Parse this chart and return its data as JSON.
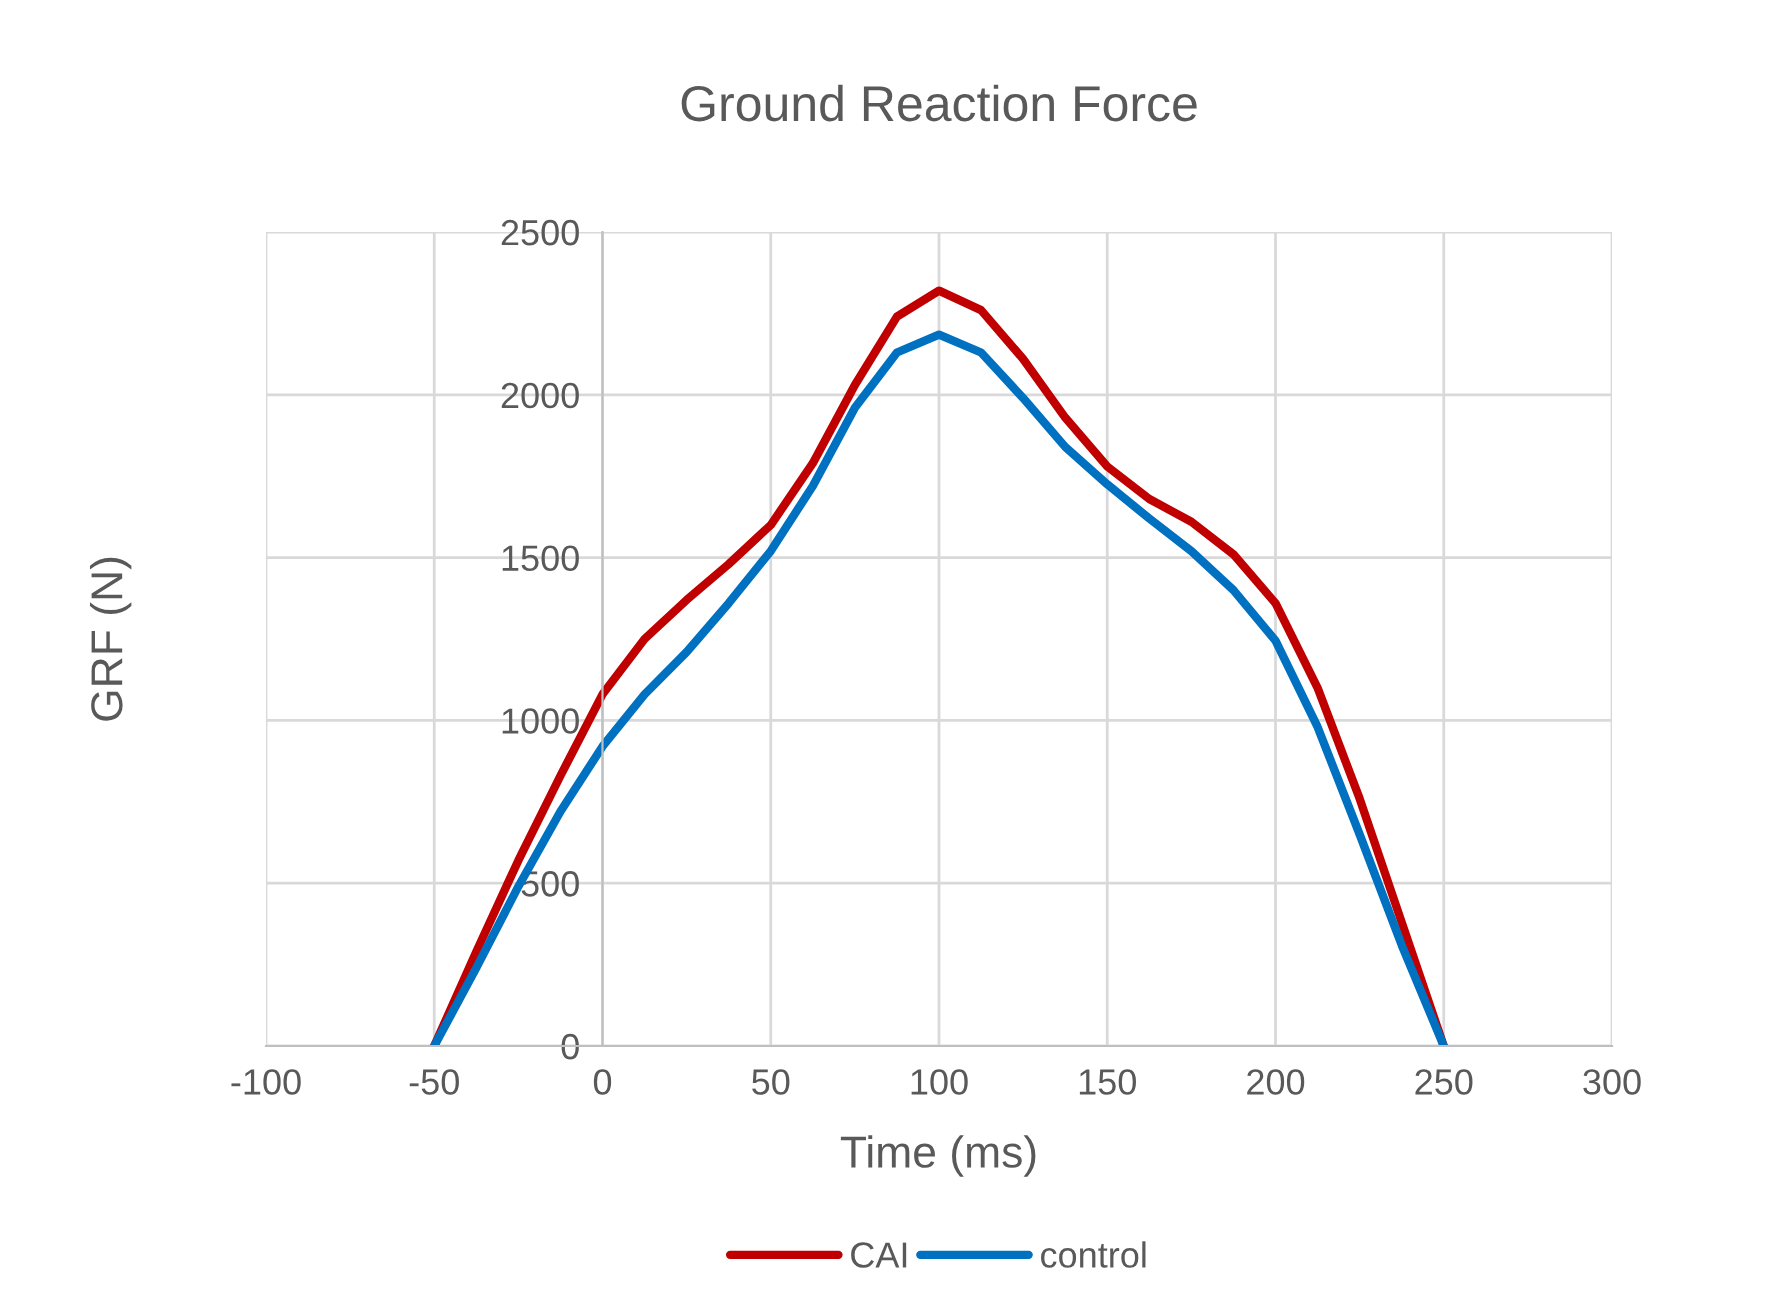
{
  "chart_data": {
    "type": "line",
    "title": "Ground Reaction Force",
    "xlabel": "Time (ms)",
    "ylabel": "GRF (N)",
    "x": [
      -50,
      -37.5,
      -25,
      -12.5,
      0,
      12.5,
      25,
      37.5,
      50,
      62.5,
      75,
      87.5,
      100,
      112.5,
      125,
      137.5,
      150,
      162.5,
      175,
      187.5,
      200,
      212.5,
      225,
      237.5,
      250
    ],
    "series": [
      {
        "name": "CAI",
        "color": "#c00000",
        "values": [
          0,
          290,
          570,
          830,
          1080,
          1250,
          1370,
          1480,
          1600,
          1790,
          2030,
          2240,
          2320,
          2260,
          2110,
          1930,
          1780,
          1680,
          1610,
          1510,
          1360,
          1100,
          760,
          380,
          0
        ]
      },
      {
        "name": "control",
        "color": "#0070c0",
        "values": [
          0,
          240,
          490,
          720,
          920,
          1080,
          1210,
          1360,
          1520,
          1720,
          1960,
          2130,
          2185,
          2130,
          1990,
          1840,
          1725,
          1620,
          1520,
          1400,
          1245,
          980,
          650,
          310,
          0
        ]
      }
    ],
    "xlim": [
      -100,
      300
    ],
    "xticks": [
      -100,
      -50,
      0,
      50,
      100,
      150,
      200,
      250,
      300
    ],
    "ylim": [
      0,
      2500
    ],
    "yticks": [
      0,
      500,
      1000,
      1500,
      2000,
      2500
    ],
    "grid": true,
    "legend": "bottom",
    "marker": "none",
    "line_style": "solid"
  }
}
